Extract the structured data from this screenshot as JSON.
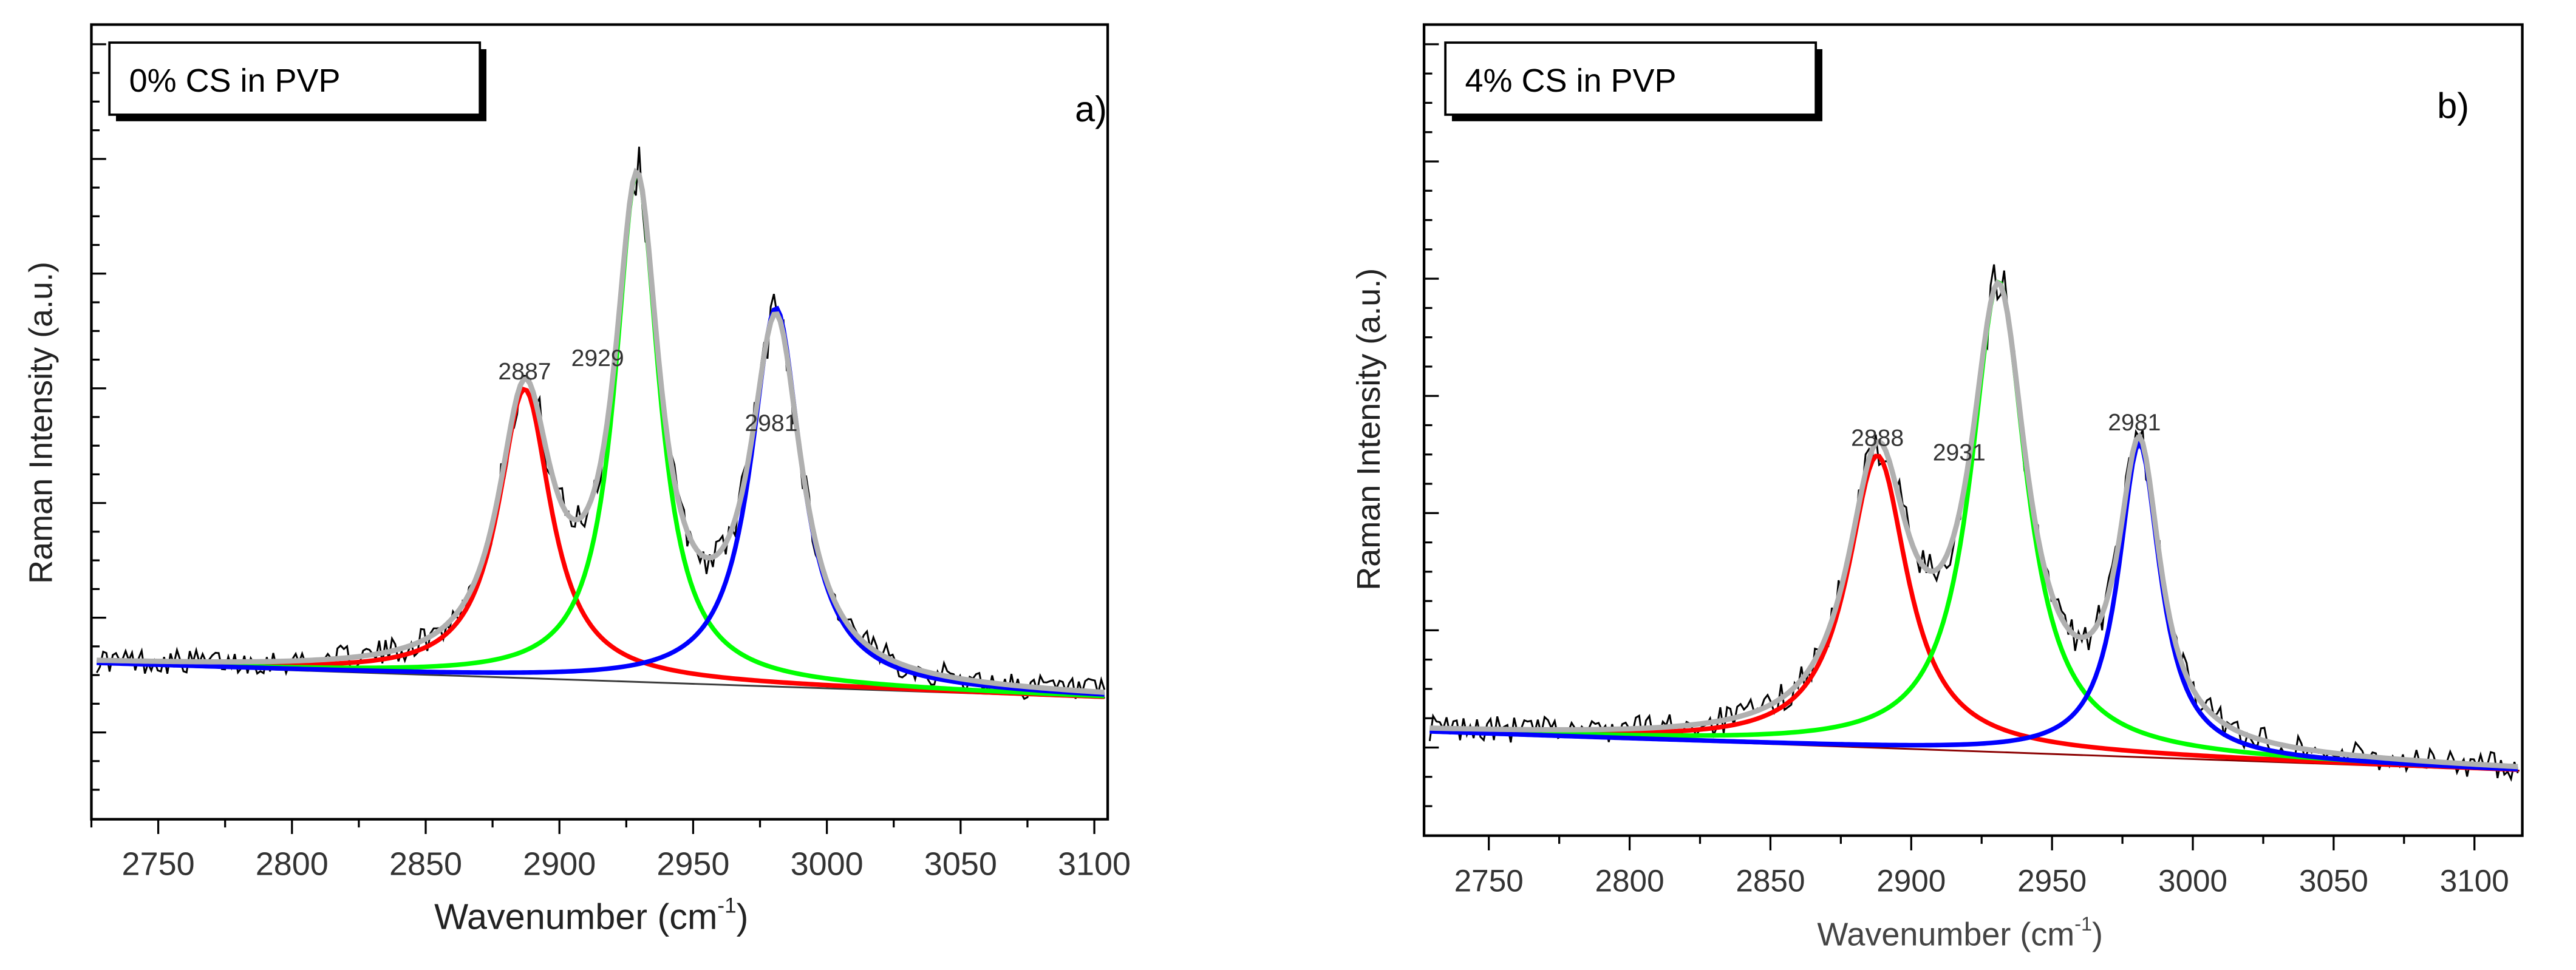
{
  "chart_data": [
    {
      "type": "line",
      "panel_label": "a)",
      "legend_box": "0% CS in PVP",
      "xlabel": "Wavenumber (cm",
      "xlabel_sup": "-1",
      "xlabel_close": ")",
      "ylabel": "Raman Intensity (a.u.)",
      "xlim": [
        2725,
        3105
      ],
      "ylim": [
        0,
        1.0
      ],
      "xticks": [
        2750,
        2800,
        2850,
        2900,
        2950,
        3000,
        3050,
        3100
      ],
      "peaks": [
        {
          "label": "2887",
          "center": 2887,
          "height": 0.42,
          "width": 24,
          "color": "#ff0000"
        },
        {
          "label": "2929",
          "center": 2929,
          "height": 0.74,
          "width": 20,
          "color": "#00ff00"
        },
        {
          "label": "2981",
          "center": 2981,
          "height": 0.55,
          "width": 23,
          "color": "#0000ff"
        }
      ],
      "baseline": {
        "start": 0.155,
        "end": 0.105
      },
      "envelope_color": "#b0b0b0",
      "data_color": "#000000",
      "baseline_color": "#3a3a3a"
    },
    {
      "type": "line",
      "panel_label": "b)",
      "legend_box": "4% CS in PVP",
      "xlabel": "Wavenumber (cm",
      "xlabel_sup": "-1",
      "xlabel_close": ")",
      "ylabel": "Raman Intensity (a.u.)",
      "xlim": [
        2727,
        3117
      ],
      "ylim": [
        0,
        1.0
      ],
      "xticks": [
        2750,
        2800,
        2850,
        2900,
        2950,
        3000,
        3050,
        3100
      ],
      "peaks": [
        {
          "label": "2888",
          "center": 2888,
          "height": 0.41,
          "width": 26,
          "color": "#ff0000"
        },
        {
          "label": "2931",
          "center": 2931,
          "height": 0.66,
          "width": 24,
          "color": "#00ff00"
        },
        {
          "label": "2981",
          "center": 2981,
          "height": 0.44,
          "width": 18,
          "color": "#0000ff"
        }
      ],
      "baseline": {
        "start": 0.1,
        "end": 0.045
      },
      "envelope_color": "#b0b0b0",
      "data_color": "#000000",
      "baseline_color": "#8b0000"
    }
  ]
}
